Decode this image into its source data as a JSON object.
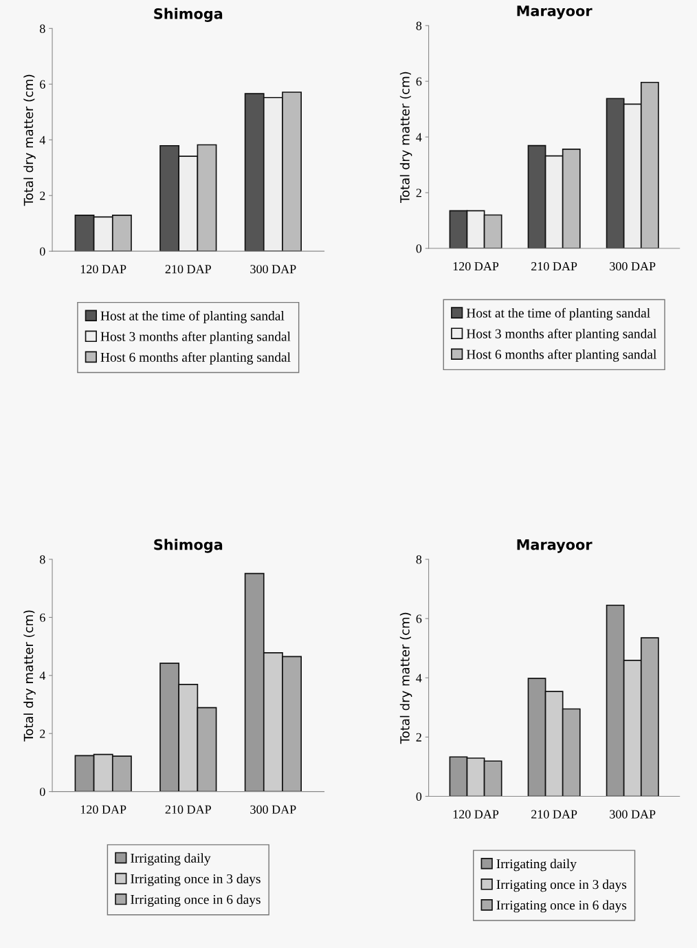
{
  "chart_data": [
    {
      "type": "bar",
      "title": "Shimoga",
      "ylabel": "Total dry matter (cm)",
      "categories": [
        "120 DAP",
        "210 DAP",
        "300 DAP"
      ],
      "ylim": [
        0,
        8
      ],
      "yticks": [
        0,
        2,
        4,
        6,
        8
      ],
      "grid": false,
      "legend": "bottom",
      "series": [
        {
          "name": "Host at the time of planting sandal",
          "color": "#555555",
          "values": [
            1.29,
            3.79,
            5.66
          ]
        },
        {
          "name": "Host 3 months after planting sandal",
          "color": "#eeeeee",
          "values": [
            1.23,
            3.41,
            5.52
          ]
        },
        {
          "name": "Host 6 months after planting sandal",
          "color": "#bbbbbb",
          "values": [
            1.29,
            3.82,
            5.71
          ]
        }
      ]
    },
    {
      "type": "bar",
      "title": "Marayoor",
      "ylabel": "Total dry matter (cm)",
      "categories": [
        "120 DAP",
        "210 DAP",
        "300 DAP"
      ],
      "ylim": [
        0,
        8
      ],
      "yticks": [
        0,
        2,
        4,
        6,
        8
      ],
      "grid": false,
      "legend": "bottom",
      "series": [
        {
          "name": "Host at the time of planting sandal",
          "color": "#555555",
          "values": [
            1.35,
            3.69,
            5.38
          ]
        },
        {
          "name": "Host 3 months after planting sandal",
          "color": "#eeeeee",
          "values": [
            1.35,
            3.32,
            5.18
          ]
        },
        {
          "name": "Host 6 months after planting sandal",
          "color": "#bbbbbb",
          "values": [
            1.2,
            3.56,
            5.96
          ]
        }
      ]
    },
    {
      "type": "bar",
      "title": "Shimoga",
      "ylabel": "Total dry matter (cm)",
      "categories": [
        "120 DAP",
        "210 DAP",
        "300 DAP"
      ],
      "ylim": [
        0,
        8
      ],
      "yticks": [
        0,
        2,
        4,
        6,
        8
      ],
      "grid": false,
      "legend": "bottom",
      "series": [
        {
          "name": "Irrigating daily",
          "color": "#999999",
          "values": [
            1.24,
            4.42,
            7.51
          ]
        },
        {
          "name": "Irrigating once in 3 days",
          "color": "#cccccc",
          "values": [
            1.28,
            3.69,
            4.78
          ]
        },
        {
          "name": "Irrigating once in 6 days",
          "color": "#aaaaaa",
          "values": [
            1.22,
            2.89,
            4.65
          ]
        }
      ]
    },
    {
      "type": "bar",
      "title": "Marayoor",
      "ylabel": "Total dry matter (cm)",
      "categories": [
        "120 DAP",
        "210 DAP",
        "300 DAP"
      ],
      "ylim": [
        0,
        8
      ],
      "yticks": [
        0,
        2,
        4,
        6,
        8
      ],
      "grid": false,
      "legend": "bottom",
      "series": [
        {
          "name": "Irrigating daily",
          "color": "#999999",
          "values": [
            1.33,
            3.98,
            6.45
          ]
        },
        {
          "name": "Irrigating once in 3 days",
          "color": "#cccccc",
          "values": [
            1.29,
            3.54,
            4.59
          ]
        },
        {
          "name": "Irrigating once in 6 days",
          "color": "#aaaaaa",
          "values": [
            1.19,
            2.95,
            5.35
          ]
        }
      ]
    }
  ]
}
